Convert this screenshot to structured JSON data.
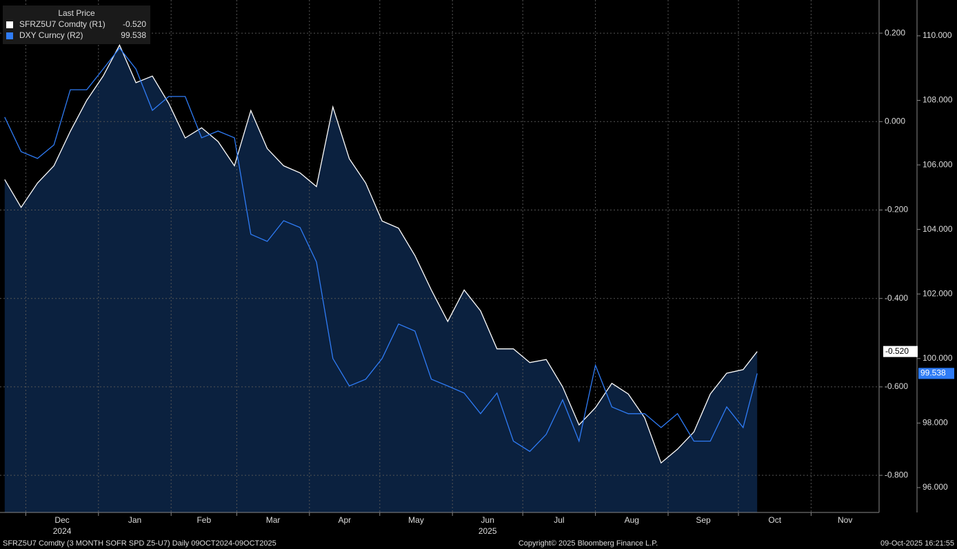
{
  "chart_data": {
    "type": "line",
    "legend_title": "Last Price",
    "x": [
      "2024-11-22",
      "2024-11-29",
      "2024-12-06",
      "2024-12-13",
      "2024-12-20",
      "2024-12-27",
      "2025-01-03",
      "2025-01-10",
      "2025-01-17",
      "2025-01-24",
      "2025-01-31",
      "2025-02-07",
      "2025-02-14",
      "2025-02-21",
      "2025-02-28",
      "2025-03-07",
      "2025-03-14",
      "2025-03-21",
      "2025-03-28",
      "2025-04-04",
      "2025-04-11",
      "2025-04-18",
      "2025-04-25",
      "2025-05-02",
      "2025-05-09",
      "2025-05-16",
      "2025-05-23",
      "2025-05-30",
      "2025-06-06",
      "2025-06-13",
      "2025-06-20",
      "2025-06-27",
      "2025-07-04",
      "2025-07-11",
      "2025-07-18",
      "2025-07-25",
      "2025-08-01",
      "2025-08-08",
      "2025-08-15",
      "2025-08-22",
      "2025-08-29",
      "2025-09-05",
      "2025-09-12",
      "2025-09-19",
      "2025-09-26",
      "2025-10-03",
      "2025-10-09"
    ],
    "xlim": [
      "2024-11-20",
      "2025-11-30"
    ],
    "xticks": [
      {
        "value": "2024-12-01",
        "label": "Dec"
      },
      {
        "value": "2025-01-01",
        "label": "Jan"
      },
      {
        "value": "2025-02-01",
        "label": "Feb"
      },
      {
        "value": "2025-03-01",
        "label": "Mar"
      },
      {
        "value": "2025-04-01",
        "label": "Apr"
      },
      {
        "value": "2025-05-01",
        "label": "May"
      },
      {
        "value": "2025-06-01",
        "label": "Jun"
      },
      {
        "value": "2025-07-01",
        "label": "Jul"
      },
      {
        "value": "2025-08-01",
        "label": "Aug"
      },
      {
        "value": "2025-09-01",
        "label": "Sep"
      },
      {
        "value": "2025-10-01",
        "label": "Oct"
      },
      {
        "value": "2025-11-01",
        "label": "Nov"
      }
    ],
    "x_year_labels": [
      {
        "value": "2024-12-01",
        "label": "2024"
      },
      {
        "value": "2025-06-01",
        "label": "2025"
      }
    ],
    "ylim": [
      -0.884,
      0.275
    ],
    "yticks": [
      {
        "value": 0.2,
        "label": "0.200"
      },
      {
        "value": 0,
        "label": "0.000"
      },
      {
        "value": -0.2,
        "label": "-0.200"
      },
      {
        "value": -0.4,
        "label": "-0.400"
      },
      {
        "value": -0.6,
        "label": "-0.600"
      },
      {
        "value": -0.8,
        "label": "-0.800"
      }
    ],
    "y2lim": [
      95.23,
      111.11
    ],
    "y2ticks": [
      {
        "value": 110,
        "label": "110.000"
      },
      {
        "value": 108,
        "label": "108.000"
      },
      {
        "value": 106,
        "label": "106.000"
      },
      {
        "value": 104,
        "label": "104.000"
      },
      {
        "value": 102,
        "label": "102.000"
      },
      {
        "value": 100,
        "label": "100.000"
      },
      {
        "value": 98,
        "label": "98.000"
      },
      {
        "value": 96,
        "label": "96.000"
      }
    ],
    "grid": true,
    "series": [
      {
        "name": "SFRZ5U7 Comdty  (R1)",
        "last_label": "-0.520",
        "color": "#ffffff",
        "fill": "#0b213f",
        "axis": "y",
        "values": [
          -0.131,
          -0.194,
          -0.139,
          -0.1,
          -0.022,
          0.048,
          0.103,
          0.173,
          0.088,
          0.103,
          0.041,
          -0.037,
          -0.014,
          -0.045,
          -0.1,
          0.025,
          -0.061,
          -0.1,
          -0.116,
          -0.147,
          0.033,
          -0.084,
          -0.139,
          -0.225,
          -0.241,
          -0.303,
          -0.381,
          -0.452,
          -0.381,
          -0.428,
          -0.514,
          -0.514,
          -0.545,
          -0.538,
          -0.6,
          -0.686,
          -0.647,
          -0.592,
          -0.616,
          -0.67,
          -0.772,
          -0.741,
          -0.702,
          -0.616,
          -0.569,
          -0.561,
          -0.52
        ]
      },
      {
        "name": "DXY Curncy  (R2)",
        "last_label": "99.538",
        "color": "#2f7cf6",
        "axis": "y2",
        "values": [
          107.48,
          106.41,
          106.2,
          106.62,
          108.33,
          108.33,
          108.97,
          109.62,
          108.97,
          107.69,
          108.12,
          108.12,
          106.84,
          107.05,
          106.84,
          103.85,
          103.63,
          104.27,
          104.06,
          102.99,
          100.0,
          99.15,
          99.36,
          100.0,
          101.07,
          100.85,
          99.36,
          99.15,
          98.93,
          98.29,
          98.93,
          97.44,
          97.12,
          97.65,
          98.72,
          97.44,
          99.79,
          98.5,
          98.29,
          98.29,
          97.86,
          98.29,
          97.44,
          97.44,
          98.5,
          97.86,
          99.538
        ]
      }
    ],
    "footer_left": "SFRZ5U7 Comdty (3 MONTH SOFR SPD  Z5-U7) Daily 09OCT2024-09OCT2025",
    "footer_center": "Copyright© 2025 Bloomberg Finance L.P.",
    "footer_right": "09-Oct-2025 16:21:55"
  }
}
